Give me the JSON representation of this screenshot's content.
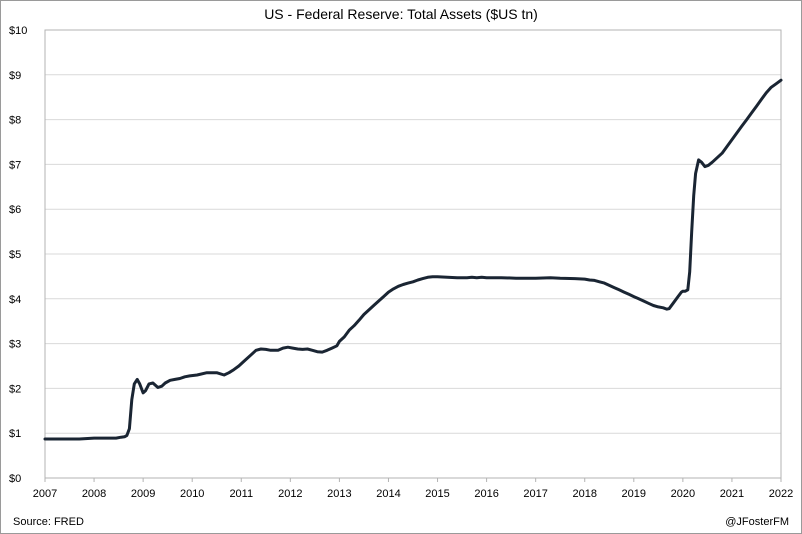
{
  "chart_data": {
    "type": "line",
    "title": "US - Federal Reserve: Total Assets ($US tn)",
    "xlabel": "",
    "ylabel": "",
    "xlim": [
      2007,
      2022
    ],
    "ylim": [
      0,
      10
    ],
    "x_ticks": [
      "2007",
      "2008",
      "2009",
      "2010",
      "2011",
      "2012",
      "2013",
      "2014",
      "2015",
      "2016",
      "2017",
      "2018",
      "2019",
      "2020",
      "2021",
      "2022"
    ],
    "y_ticks": [
      "$0",
      "$1",
      "$2",
      "$3",
      "$4",
      "$5",
      "$6",
      "$7",
      "$8",
      "$9",
      "$10"
    ],
    "grid": "horizontal",
    "line_color": "#1a2533",
    "series": [
      {
        "x": [
          2007.0,
          2007.5,
          2007.7,
          2008.0,
          2008.3,
          2008.45,
          2008.55,
          2008.62,
          2008.67,
          2008.72,
          2008.77,
          2008.82,
          2008.88,
          2008.93,
          2009.0,
          2009.05,
          2009.12,
          2009.2,
          2009.3,
          2009.38,
          2009.45,
          2009.55,
          2009.65,
          2009.75,
          2009.85,
          2009.95,
          2010.1,
          2010.3,
          2010.5,
          2010.65,
          2010.75,
          2010.85,
          2010.95,
          2011.05,
          2011.2,
          2011.3,
          2011.4,
          2011.5,
          2011.6,
          2011.75,
          2011.85,
          2011.95,
          2012.05,
          2012.15,
          2012.25,
          2012.35,
          2012.45,
          2012.55,
          2012.65,
          2012.75,
          2012.85,
          2012.95,
          2013.0,
          2013.1,
          2013.2,
          2013.3,
          2013.4,
          2013.5,
          2013.6,
          2013.7,
          2013.8,
          2013.9,
          2014.0,
          2014.1,
          2014.2,
          2014.3,
          2014.4,
          2014.5,
          2014.6,
          2014.7,
          2014.8,
          2014.9,
          2015.0,
          2015.2,
          2015.4,
          2015.6,
          2015.7,
          2015.8,
          2015.9,
          2016.0,
          2016.3,
          2016.6,
          2016.9,
          2017.0,
          2017.3,
          2017.5,
          2017.8,
          2018.0,
          2018.1,
          2018.2,
          2018.3,
          2018.4,
          2018.5,
          2018.6,
          2018.7,
          2018.8,
          2018.9,
          2019.0,
          2019.1,
          2019.2,
          2019.3,
          2019.4,
          2019.5,
          2019.6,
          2019.67,
          2019.72,
          2019.8,
          2019.9,
          2019.97,
          2020.0,
          2020.05,
          2020.1,
          2020.14,
          2020.18,
          2020.22,
          2020.26,
          2020.32,
          2020.38,
          2020.45,
          2020.52,
          2020.6,
          2020.7,
          2020.8,
          2020.9,
          2021.0,
          2021.1,
          2021.2,
          2021.3,
          2021.4,
          2021.5,
          2021.6,
          2021.7,
          2021.8,
          2021.9,
          2022.0
        ],
        "values": [
          0.87,
          0.87,
          0.87,
          0.89,
          0.89,
          0.89,
          0.91,
          0.92,
          0.95,
          1.1,
          1.75,
          2.1,
          2.2,
          2.1,
          1.9,
          1.95,
          2.1,
          2.12,
          2.02,
          2.05,
          2.12,
          2.18,
          2.2,
          2.22,
          2.26,
          2.28,
          2.3,
          2.35,
          2.35,
          2.3,
          2.35,
          2.42,
          2.5,
          2.6,
          2.75,
          2.85,
          2.88,
          2.87,
          2.85,
          2.85,
          2.9,
          2.92,
          2.9,
          2.88,
          2.87,
          2.88,
          2.85,
          2.82,
          2.81,
          2.85,
          2.9,
          2.95,
          3.05,
          3.15,
          3.3,
          3.4,
          3.52,
          3.65,
          3.75,
          3.85,
          3.95,
          4.05,
          4.15,
          4.22,
          4.28,
          4.32,
          4.35,
          4.38,
          4.42,
          4.45,
          4.48,
          4.49,
          4.49,
          4.48,
          4.47,
          4.47,
          4.48,
          4.47,
          4.48,
          4.47,
          4.47,
          4.46,
          4.46,
          4.46,
          4.47,
          4.46,
          4.45,
          4.44,
          4.42,
          4.41,
          4.38,
          4.35,
          4.3,
          4.25,
          4.2,
          4.15,
          4.1,
          4.05,
          4.0,
          3.95,
          3.9,
          3.85,
          3.82,
          3.8,
          3.77,
          3.78,
          3.9,
          4.05,
          4.15,
          4.17,
          4.17,
          4.2,
          4.6,
          5.5,
          6.3,
          6.8,
          7.1,
          7.05,
          6.95,
          6.98,
          7.05,
          7.15,
          7.25,
          7.4,
          7.55,
          7.7,
          7.85,
          8.0,
          8.15,
          8.3,
          8.45,
          8.6,
          8.72,
          8.8,
          8.88
        ]
      }
    ],
    "source": "Source: FRED",
    "credit": "@JFosterFM"
  }
}
